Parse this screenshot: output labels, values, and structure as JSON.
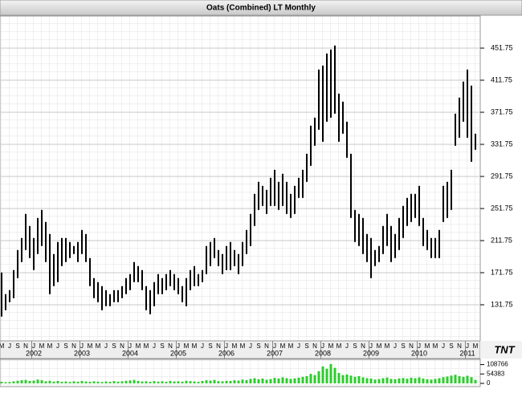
{
  "chart_data": {
    "type": "ohlc",
    "title": "Oats (Combined) LT Monthly",
    "categories": [
      "M",
      null,
      "J",
      null,
      "S",
      null,
      "N",
      null,
      "J",
      null,
      "M",
      null,
      "M",
      null,
      "J",
      null,
      "S",
      null,
      "N",
      null,
      "J",
      null,
      "M",
      null,
      "M",
      null,
      "J",
      null,
      "S",
      null,
      "N",
      null,
      "J",
      null,
      "M",
      null,
      "M",
      null,
      "J",
      null,
      "S",
      null,
      "N",
      null,
      "J",
      null,
      "M",
      null,
      "M",
      null,
      "J",
      null,
      "S",
      null,
      "N",
      null,
      "J",
      null,
      "M",
      null,
      "M",
      null,
      "J",
      null,
      "S",
      null,
      "N",
      null,
      "J",
      null,
      "M",
      null,
      "M",
      null,
      "J",
      null,
      "S",
      null,
      "N",
      null,
      "J",
      null,
      "M",
      null,
      "M",
      null,
      "J",
      null,
      "S",
      null,
      "N",
      null,
      "J",
      null,
      "M",
      null,
      "M",
      null,
      "J",
      null,
      "S",
      null,
      "N",
      null,
      "J",
      null,
      "M",
      null,
      "M",
      null,
      "J",
      null,
      "S",
      null,
      "N",
      null,
      "J",
      null,
      "M"
    ],
    "year_ticks": [
      {
        "value": 8,
        "label": "2002"
      },
      {
        "value": 20,
        "label": "2003"
      },
      {
        "value": 32,
        "label": "2004"
      },
      {
        "value": 44,
        "label": "2005"
      },
      {
        "value": 56,
        "label": "2006"
      },
      {
        "value": 68,
        "label": "2007"
      },
      {
        "value": 80,
        "label": "2008"
      },
      {
        "value": 92,
        "label": "2009"
      },
      {
        "value": 104,
        "label": "2010"
      },
      {
        "value": 116,
        "label": "2011"
      }
    ],
    "high": [
      172,
      145,
      150,
      175,
      200,
      215,
      245,
      230,
      215,
      240,
      250,
      235,
      220,
      195,
      210,
      215,
      215,
      210,
      205,
      210,
      225,
      220,
      190,
      165,
      160,
      155,
      150,
      145,
      150,
      150,
      155,
      165,
      170,
      185,
      180,
      175,
      155,
      150,
      160,
      170,
      165,
      170,
      175,
      170,
      165,
      155,
      165,
      175,
      180,
      170,
      175,
      205,
      210,
      215,
      200,
      195,
      205,
      210,
      200,
      195,
      210,
      225,
      245,
      270,
      285,
      280,
      275,
      290,
      300,
      285,
      295,
      285,
      270,
      280,
      290,
      300,
      320,
      355,
      365,
      425,
      430,
      445,
      450,
      455,
      395,
      385,
      360,
      320,
      250,
      245,
      240,
      220,
      215,
      200,
      205,
      230,
      245,
      230,
      220,
      240,
      255,
      265,
      270,
      270,
      280,
      240,
      225,
      215,
      215,
      225,
      280,
      285,
      300,
      370,
      390,
      410,
      425,
      405,
      345
    ],
    "low": [
      117,
      125,
      135,
      140,
      165,
      185,
      200,
      190,
      175,
      195,
      205,
      185,
      145,
      155,
      160,
      180,
      185,
      190,
      195,
      185,
      195,
      185,
      155,
      140,
      135,
      125,
      130,
      130,
      135,
      135,
      140,
      145,
      150,
      160,
      160,
      150,
      125,
      120,
      130,
      145,
      145,
      150,
      155,
      150,
      145,
      135,
      130,
      150,
      155,
      155,
      160,
      170,
      180,
      190,
      180,
      170,
      175,
      175,
      180,
      170,
      180,
      195,
      205,
      230,
      250,
      255,
      245,
      255,
      255,
      250,
      255,
      245,
      240,
      245,
      265,
      265,
      285,
      305,
      330,
      350,
      335,
      360,
      365,
      370,
      335,
      345,
      315,
      240,
      210,
      205,
      195,
      185,
      165,
      180,
      185,
      195,
      205,
      185,
      190,
      200,
      215,
      230,
      235,
      240,
      230,
      205,
      200,
      190,
      190,
      190,
      235,
      240,
      250,
      330,
      340,
      360,
      340,
      310,
      325
    ],
    "volume": [
      9000,
      7000,
      8000,
      12000,
      15000,
      18000,
      20000,
      14000,
      16000,
      22000,
      18000,
      12000,
      15000,
      10000,
      14000,
      9000,
      11000,
      8000,
      12000,
      10000,
      14000,
      11000,
      9000,
      12000,
      10000,
      8000,
      11000,
      9000,
      13000,
      10000,
      12000,
      15000,
      17000,
      20000,
      14000,
      11000,
      12000,
      9000,
      13000,
      10000,
      12000,
      9000,
      14000,
      11000,
      12000,
      10000,
      15000,
      13000,
      11000,
      9000,
      14000,
      18000,
      16000,
      20000,
      13000,
      12000,
      15000,
      14000,
      18000,
      16000,
      22000,
      19000,
      26000,
      30000,
      24000,
      28000,
      21000,
      25000,
      32000,
      28000,
      35000,
      30000,
      26000,
      29000,
      33000,
      38000,
      42000,
      55000,
      48000,
      70000,
      98000,
      85000,
      112000,
      90000,
      60000,
      48000,
      52000,
      45000,
      38000,
      42000,
      35000,
      30000,
      28000,
      22000,
      25000,
      30000,
      34000,
      26000,
      24000,
      29000,
      31000,
      27000,
      33000,
      30000,
      35000,
      28000,
      24000,
      22000,
      26000,
      30000,
      36000,
      40000,
      45000,
      50000,
      42000,
      38000,
      44000,
      36000,
      20000
    ],
    "ylim": [
      86.75,
      491.75
    ],
    "yticks": [
      131.75,
      171.75,
      211.75,
      251.75,
      291.75,
      331.75,
      371.75,
      411.75,
      451.75
    ],
    "volume_lim": [
      0,
      130000
    ],
    "volume_ticks": [
      0,
      54383,
      108766
    ],
    "grid": true,
    "color": "#000000",
    "volume_color": "#2ecc2e",
    "logo": "TNT"
  }
}
